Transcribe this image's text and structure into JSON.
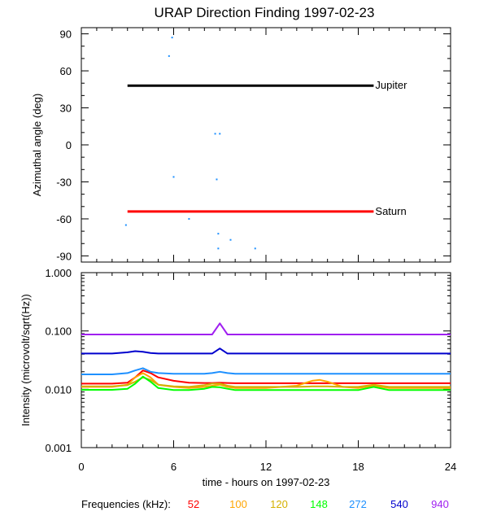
{
  "chart_data": [
    {
      "type": "scatter",
      "title": "URAP Direction Finding  1997-02-23",
      "ylabel": "Azimuthal angle (deg)",
      "xlim": [
        0,
        24
      ],
      "ylim": [
        -95,
        95
      ],
      "yticks": [
        90,
        60,
        30,
        0,
        -30,
        -60,
        -90
      ],
      "yticks_text": [
        "90",
        "60",
        "30",
        "0",
        "-30",
        "-60",
        "-90"
      ],
      "reference_lines": [
        {
          "name": "Jupiter",
          "x_start": 3.0,
          "x_end": 19.0,
          "y": 48,
          "color": "#000000"
        },
        {
          "name": "Saturn",
          "x_start": 3.0,
          "x_end": 19.0,
          "y": -54,
          "color": "#ff0000"
        }
      ],
      "points": {
        "color": "#1e90ff",
        "x": [
          2.9,
          5.7,
          5.9,
          6.0,
          7.0,
          8.7,
          8.8,
          8.9,
          8.9,
          9.0,
          9.7,
          11.3
        ],
        "y": [
          -65,
          72,
          87,
          -26,
          -60,
          9,
          -28,
          -72,
          -84,
          9,
          -77,
          -84
        ]
      }
    },
    {
      "type": "line",
      "ylabel": "Intensity (microvolt/sqrt(Hz))",
      "xlabel": "time - hours on 1997-02-23",
      "xlim": [
        0,
        24
      ],
      "ylim": [
        0.001,
        1.0
      ],
      "yscale": "log",
      "xticks": [
        0,
        6,
        12,
        18,
        24
      ],
      "xticks_text": [
        "0",
        "6",
        "12",
        "18",
        "24"
      ],
      "yticks": [
        1.0,
        0.1,
        0.01,
        0.001
      ],
      "yticks_text": [
        "1.000",
        "0.100",
        "0.010",
        "0.001"
      ],
      "legend_label": "Frequencies (kHz):",
      "x": [
        0,
        1,
        2,
        3,
        3.5,
        4,
        4.5,
        5,
        6,
        7,
        8,
        8.5,
        9,
        9.5,
        10,
        11,
        12,
        13,
        14,
        15,
        15.5,
        16,
        17,
        18,
        19,
        20,
        21,
        22,
        23,
        24
      ],
      "series": [
        {
          "name": "52",
          "color": "#ff0000",
          "values": [
            0.0125,
            0.0125,
            0.0125,
            0.013,
            0.016,
            0.021,
            0.019,
            0.016,
            0.014,
            0.013,
            0.0128,
            0.0128,
            0.013,
            0.0128,
            0.0127,
            0.0127,
            0.0127,
            0.0127,
            0.0127,
            0.0127,
            0.0127,
            0.0127,
            0.0127,
            0.0127,
            0.0127,
            0.0127,
            0.0127,
            0.0127,
            0.0127,
            0.0127
          ]
        },
        {
          "name": "100",
          "color": "#ffa500",
          "values": [
            0.011,
            0.011,
            0.011,
            0.012,
            0.016,
            0.019,
            0.016,
            0.012,
            0.011,
            0.0105,
            0.011,
            0.0115,
            0.012,
            0.011,
            0.0105,
            0.0105,
            0.0105,
            0.011,
            0.0115,
            0.014,
            0.0145,
            0.0135,
            0.011,
            0.0105,
            0.0115,
            0.0105,
            0.0105,
            0.0105,
            0.0105,
            0.0105
          ]
        },
        {
          "name": "120",
          "color": "#d4b000",
          "values": [
            0.0112,
            0.0112,
            0.0112,
            0.0118,
            0.0135,
            0.016,
            0.0145,
            0.012,
            0.0112,
            0.011,
            0.0118,
            0.0125,
            0.0125,
            0.0115,
            0.011,
            0.011,
            0.011,
            0.011,
            0.011,
            0.0112,
            0.0112,
            0.0112,
            0.011,
            0.011,
            0.012,
            0.011,
            0.011,
            0.011,
            0.011,
            0.011
          ]
        },
        {
          "name": "148",
          "color": "#00ff00",
          "values": [
            0.0098,
            0.0098,
            0.0098,
            0.0102,
            0.0125,
            0.0165,
            0.0135,
            0.0105,
            0.0097,
            0.0097,
            0.0102,
            0.011,
            0.0108,
            0.0102,
            0.0097,
            0.0097,
            0.0097,
            0.0097,
            0.0097,
            0.0097,
            0.0097,
            0.0097,
            0.0097,
            0.0097,
            0.011,
            0.0097,
            0.0097,
            0.0097,
            0.0097,
            0.0097
          ]
        },
        {
          "name": "272",
          "color": "#1e90ff",
          "values": [
            0.018,
            0.018,
            0.018,
            0.019,
            0.021,
            0.023,
            0.02,
            0.019,
            0.0185,
            0.0185,
            0.0185,
            0.019,
            0.02,
            0.019,
            0.0185,
            0.0185,
            0.0185,
            0.0185,
            0.0185,
            0.0185,
            0.0185,
            0.0185,
            0.0185,
            0.0185,
            0.0185,
            0.0185,
            0.0185,
            0.0185,
            0.0185,
            0.0185
          ]
        },
        {
          "name": "540",
          "color": "#0000cd",
          "values": [
            0.041,
            0.041,
            0.041,
            0.043,
            0.045,
            0.044,
            0.042,
            0.041,
            0.041,
            0.041,
            0.041,
            0.041,
            0.05,
            0.041,
            0.041,
            0.041,
            0.041,
            0.041,
            0.041,
            0.041,
            0.041,
            0.041,
            0.041,
            0.041,
            0.041,
            0.041,
            0.041,
            0.041,
            0.041,
            0.041
          ]
        },
        {
          "name": "940",
          "color": "#a020f0",
          "values": [
            0.087,
            0.087,
            0.087,
            0.087,
            0.087,
            0.087,
            0.087,
            0.087,
            0.087,
            0.087,
            0.087,
            0.087,
            0.135,
            0.087,
            0.087,
            0.087,
            0.087,
            0.087,
            0.087,
            0.087,
            0.087,
            0.087,
            0.087,
            0.087,
            0.087,
            0.087,
            0.087,
            0.087,
            0.087,
            0.087
          ]
        }
      ]
    }
  ]
}
